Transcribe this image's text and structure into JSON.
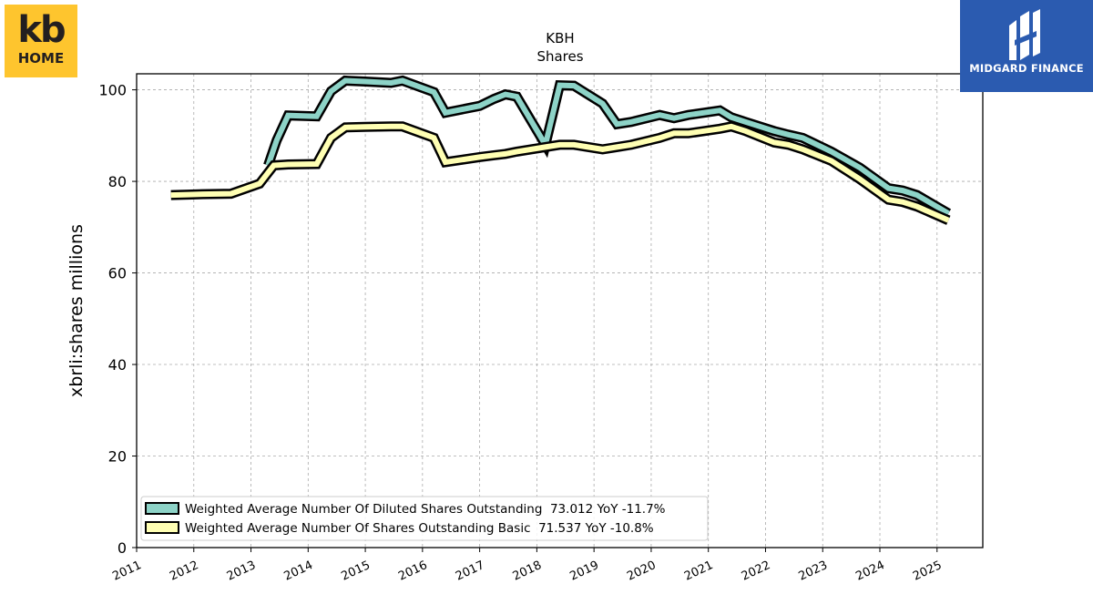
{
  "header": {
    "ticker": "KBH",
    "subtitle": "Shares"
  },
  "company_logo": {
    "line1": "kb",
    "line2": "HOME",
    "color": "#fec52e"
  },
  "brand_logo": {
    "text": "MIDGARD FINANCE",
    "color": "#2b5bb0"
  },
  "chart_data": {
    "type": "line",
    "title": "KBH",
    "subtitle": "Shares",
    "ylabel": "xbrli:shares millions",
    "xlabel": "",
    "xlim": [
      2011.0,
      2025.8
    ],
    "ylim": [
      0,
      103.5
    ],
    "yticks": [
      0,
      20,
      40,
      60,
      80,
      100
    ],
    "xticks": [
      "2011",
      "2012",
      "2013",
      "2014",
      "2015",
      "2016",
      "2017",
      "2018",
      "2019",
      "2020",
      "2021",
      "2022",
      "2023",
      "2024",
      "2025"
    ],
    "grid": true,
    "legend_position": "bottom-left",
    "series": [
      {
        "name": "Weighted Average Number Of Diluted Shares Outstanding  73.012 YoY -11.7%",
        "color": "#8dd3c7",
        "x": [
          2013.3,
          2013.45,
          2013.65,
          2014.15,
          2014.4,
          2014.65,
          2015.0,
          2015.45,
          2015.65,
          2016.2,
          2016.4,
          2017.0,
          2017.25,
          2017.45,
          2017.65,
          2018.15,
          2018.4,
          2018.65,
          2019.15,
          2019.4,
          2019.65,
          2020.15,
          2020.4,
          2020.65,
          2021.2,
          2021.4,
          2021.65,
          2022.15,
          2022.4,
          2022.65,
          2023.15,
          2023.65,
          2024.15,
          2024.4,
          2024.65,
          2025.2
        ],
        "y": [
          83.5,
          89.0,
          94.4,
          94.2,
          99.7,
          102.0,
          101.8,
          101.5,
          102.0,
          99.5,
          95.0,
          96.5,
          98.0,
          99.0,
          98.5,
          88.0,
          101.0,
          100.9,
          97.0,
          92.5,
          93.0,
          94.5,
          93.8,
          94.5,
          95.5,
          94.0,
          93.0,
          91.0,
          90.2,
          89.5,
          86.5,
          83.0,
          78.5,
          78.0,
          77.0,
          73.0
        ]
      },
      {
        "name": "Weighted Average Number Of Shares Outstanding Basic  71.537 YoY -10.8%",
        "color": "#ffffb3",
        "x": [
          2011.6,
          2011.9,
          2012.15,
          2012.65,
          2013.15,
          2013.4,
          2013.65,
          2014.15,
          2014.4,
          2014.65,
          2015.0,
          2015.45,
          2015.65,
          2016.2,
          2016.4,
          2017.0,
          2017.25,
          2017.45,
          2017.65,
          2018.15,
          2018.4,
          2018.65,
          2019.15,
          2019.4,
          2019.65,
          2020.15,
          2020.4,
          2020.65,
          2021.2,
          2021.4,
          2021.65,
          2022.15,
          2022.4,
          2022.65,
          2023.15,
          2023.65,
          2024.15,
          2024.4,
          2024.65,
          2025.2
        ],
        "y": [
          77.0,
          77.1,
          77.2,
          77.3,
          79.5,
          83.5,
          83.7,
          83.8,
          89.5,
          91.8,
          91.9,
          92.0,
          92.0,
          89.5,
          84.2,
          85.3,
          85.7,
          86.0,
          86.5,
          87.5,
          88.0,
          88.0,
          87.0,
          87.5,
          88.0,
          89.5,
          90.5,
          90.5,
          91.5,
          92.0,
          91.0,
          88.5,
          88.0,
          87.0,
          84.5,
          80.5,
          76.0,
          75.5,
          74.5,
          71.5
        ]
      }
    ]
  }
}
